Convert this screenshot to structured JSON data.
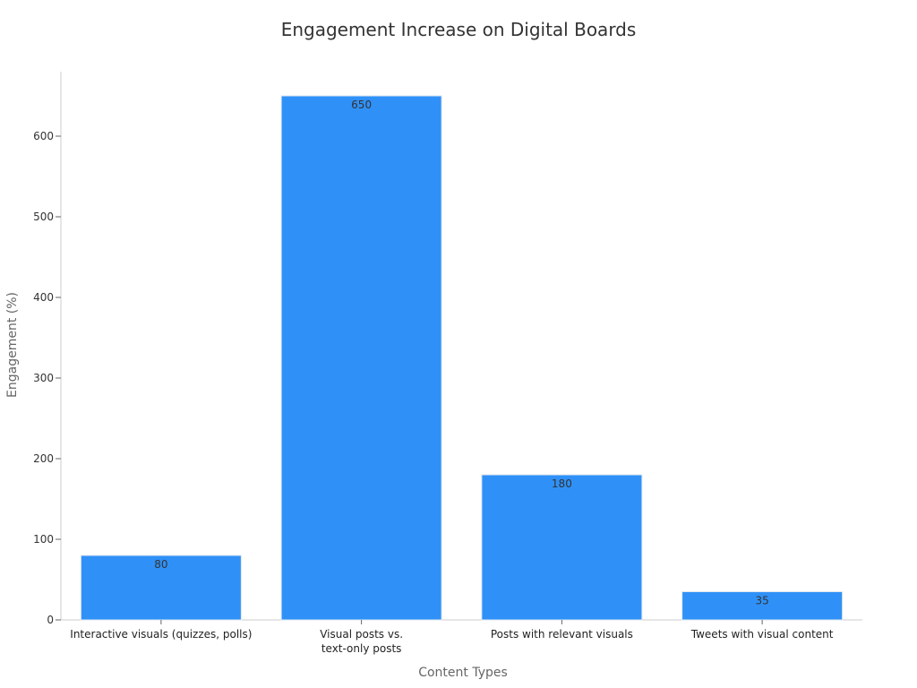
{
  "chart_data": {
    "type": "bar",
    "title": "Engagement Increase on Digital Boards",
    "xlabel": "Content Types",
    "ylabel": "Engagement (%)",
    "categories": [
      [
        "Interactive visuals (quizzes, polls)"
      ],
      [
        "Visual posts vs.",
        "text-only posts"
      ],
      [
        "Posts with relevant visuals"
      ],
      [
        "Tweets with visual content"
      ]
    ],
    "values": [
      80,
      650,
      180,
      35
    ],
    "ylim": [
      0,
      680
    ],
    "yticks": [
      0,
      100,
      200,
      300,
      400,
      500,
      600
    ],
    "bar_color": "#2f91f8",
    "data_labels": true,
    "grid": false,
    "legend": "none"
  }
}
